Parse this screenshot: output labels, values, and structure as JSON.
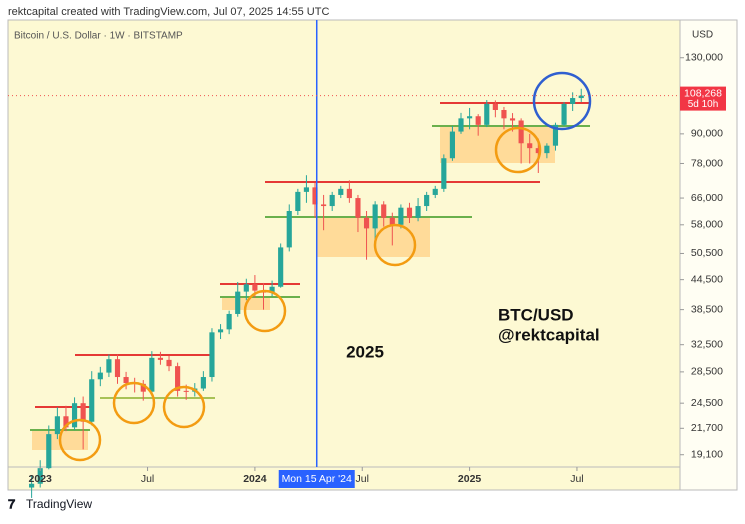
{
  "header": "rektcapital created with TradingView.com, Jul 07, 2025 14:55 UTC",
  "footer": "TradingView",
  "chart_data": {
    "type": "candlestick",
    "title": "Bitcoin / U.S. Dollar · 1W · BITSTAMP",
    "currency": "USD",
    "log_scale": true,
    "colors": {
      "up": "#26a69a",
      "down": "#ef5350"
    },
    "x": [
      2022.96,
      2023.0,
      2023.04,
      2023.08,
      2023.12,
      2023.16,
      2023.2,
      2023.24,
      2023.28,
      2023.32,
      2023.36,
      2023.4,
      2023.44,
      2023.48,
      2023.52,
      2023.56,
      2023.6,
      2023.64,
      2023.68,
      2023.72,
      2023.76,
      2023.8,
      2023.84,
      2023.88,
      2023.92,
      2023.96,
      2024.0,
      2024.04,
      2024.08,
      2024.12,
      2024.16,
      2024.2,
      2024.24,
      2024.28,
      2024.32,
      2024.36,
      2024.4,
      2024.44,
      2024.48,
      2024.52,
      2024.56,
      2024.6,
      2024.64,
      2024.68,
      2024.72,
      2024.76,
      2024.8,
      2024.84,
      2024.88,
      2024.92,
      2024.96,
      2025.0,
      2025.04,
      2025.08,
      2025.12,
      2025.16,
      2025.2,
      2025.24,
      2025.28,
      2025.32,
      2025.36,
      2025.4,
      2025.44,
      2025.48,
      2025.52
    ],
    "open": [
      16300,
      16600,
      17900,
      21100,
      23000,
      21800,
      24500,
      22400,
      27500,
      28400,
      30300,
      27800,
      27000,
      26900,
      25900,
      30500,
      30200,
      29300,
      26000,
      25900,
      26300,
      27800,
      34500,
      35000,
      37700,
      42000,
      43500,
      42200,
      41800,
      43000,
      52000,
      62000,
      68000,
      69500,
      64000,
      63500,
      67000,
      69000,
      66000,
      60000,
      57000,
      64000,
      60000,
      58000,
      63000,
      60000,
      63500,
      67000,
      69000,
      80000,
      91000,
      97000,
      98000,
      94000,
      104000,
      101000,
      97000,
      96000,
      86000,
      84000,
      82000,
      85000,
      94000,
      104000,
      107000
    ],
    "high": [
      17300,
      18600,
      22000,
      24000,
      24200,
      25200,
      25300,
      28600,
      29200,
      31000,
      31000,
      28500,
      27700,
      27400,
      31500,
      31400,
      30800,
      29800,
      26800,
      27000,
      28600,
      35200,
      35900,
      38300,
      44000,
      44700,
      45500,
      43800,
      44300,
      53000,
      64000,
      69000,
      73700,
      71000,
      67000,
      68000,
      70000,
      71900,
      67000,
      62000,
      65000,
      65000,
      61500,
      64000,
      64500,
      66000,
      68000,
      70000,
      81500,
      93500,
      99600,
      102000,
      99000,
      106000,
      105800,
      102500,
      99500,
      97000,
      90000,
      88000,
      86000,
      95000,
      105000,
      110000,
      111900
    ],
    "low": [
      15500,
      16300,
      17800,
      20600,
      21400,
      21500,
      19600,
      22000,
      26600,
      27800,
      26900,
      26200,
      25800,
      24800,
      25400,
      29500,
      28600,
      25300,
      24900,
      25300,
      26000,
      27200,
      33400,
      34200,
      37200,
      40300,
      40800,
      38500,
      41000,
      42800,
      51000,
      60800,
      64500,
      60000,
      56500,
      62000,
      66000,
      64500,
      56000,
      49000,
      54000,
      57500,
      52500,
      57000,
      58500,
      59000,
      62000,
      66000,
      68000,
      79000,
      90000,
      92000,
      89200,
      93000,
      97500,
      92000,
      91000,
      78000,
      78000,
      74500,
      80000,
      83000,
      93500,
      100500,
      105000
    ],
    "close": [
      16600,
      17900,
      21100,
      23000,
      21800,
      24500,
      22400,
      27500,
      28400,
      30300,
      27800,
      27000,
      26900,
      25900,
      30500,
      30200,
      29300,
      26000,
      25900,
      26300,
      27800,
      34500,
      35000,
      37700,
      42000,
      43500,
      42200,
      41800,
      43000,
      52000,
      62000,
      68000,
      69500,
      64000,
      63500,
      67000,
      69000,
      66000,
      60000,
      57000,
      64000,
      60000,
      58000,
      63000,
      60000,
      63500,
      67000,
      69000,
      80000,
      91000,
      97000,
      98000,
      94000,
      104000,
      101000,
      97000,
      96000,
      86000,
      84000,
      82000,
      85000,
      94000,
      104000,
      107000,
      108268
    ],
    "xlim": [
      2022.85,
      2025.98
    ],
    "xticks": [
      {
        "value": 2023,
        "label": "2023"
      },
      {
        "value": 2023.5,
        "label": "Jul"
      },
      {
        "value": 2024,
        "label": "2024"
      },
      {
        "value": 2024.5,
        "label": "Jul"
      },
      {
        "value": 2025,
        "label": "2025"
      },
      {
        "value": 2025.5,
        "label": "Jul"
      }
    ],
    "ylim": [
      18000,
      156000
    ],
    "yticks": [
      {
        "value": 130000,
        "label": "130,000"
      },
      {
        "value": 90000,
        "label": "90,000"
      },
      {
        "value": 78000,
        "label": "78,000"
      },
      {
        "value": 66000,
        "label": "66,000"
      },
      {
        "value": 58000,
        "label": "58,000"
      },
      {
        "value": 50500,
        "label": "50,500"
      },
      {
        "value": 44500,
        "label": "44,500"
      },
      {
        "value": 38500,
        "label": "38,500"
      },
      {
        "value": 32500,
        "label": "32,500"
      },
      {
        "value": 28500,
        "label": "28,500"
      },
      {
        "value": 24500,
        "label": "24,500"
      },
      {
        "value": 21700,
        "label": "21,700"
      },
      {
        "value": 19100,
        "label": "19,100"
      }
    ],
    "last_price": {
      "value": 108268,
      "label": "108,268",
      "countdown": "5d 10h"
    },
    "crosshair": {
      "value": 2024.288,
      "label": "Mon 15 Apr '24"
    },
    "annotations": [
      "2025",
      "BTC/USD",
      "@rektcapital"
    ]
  }
}
